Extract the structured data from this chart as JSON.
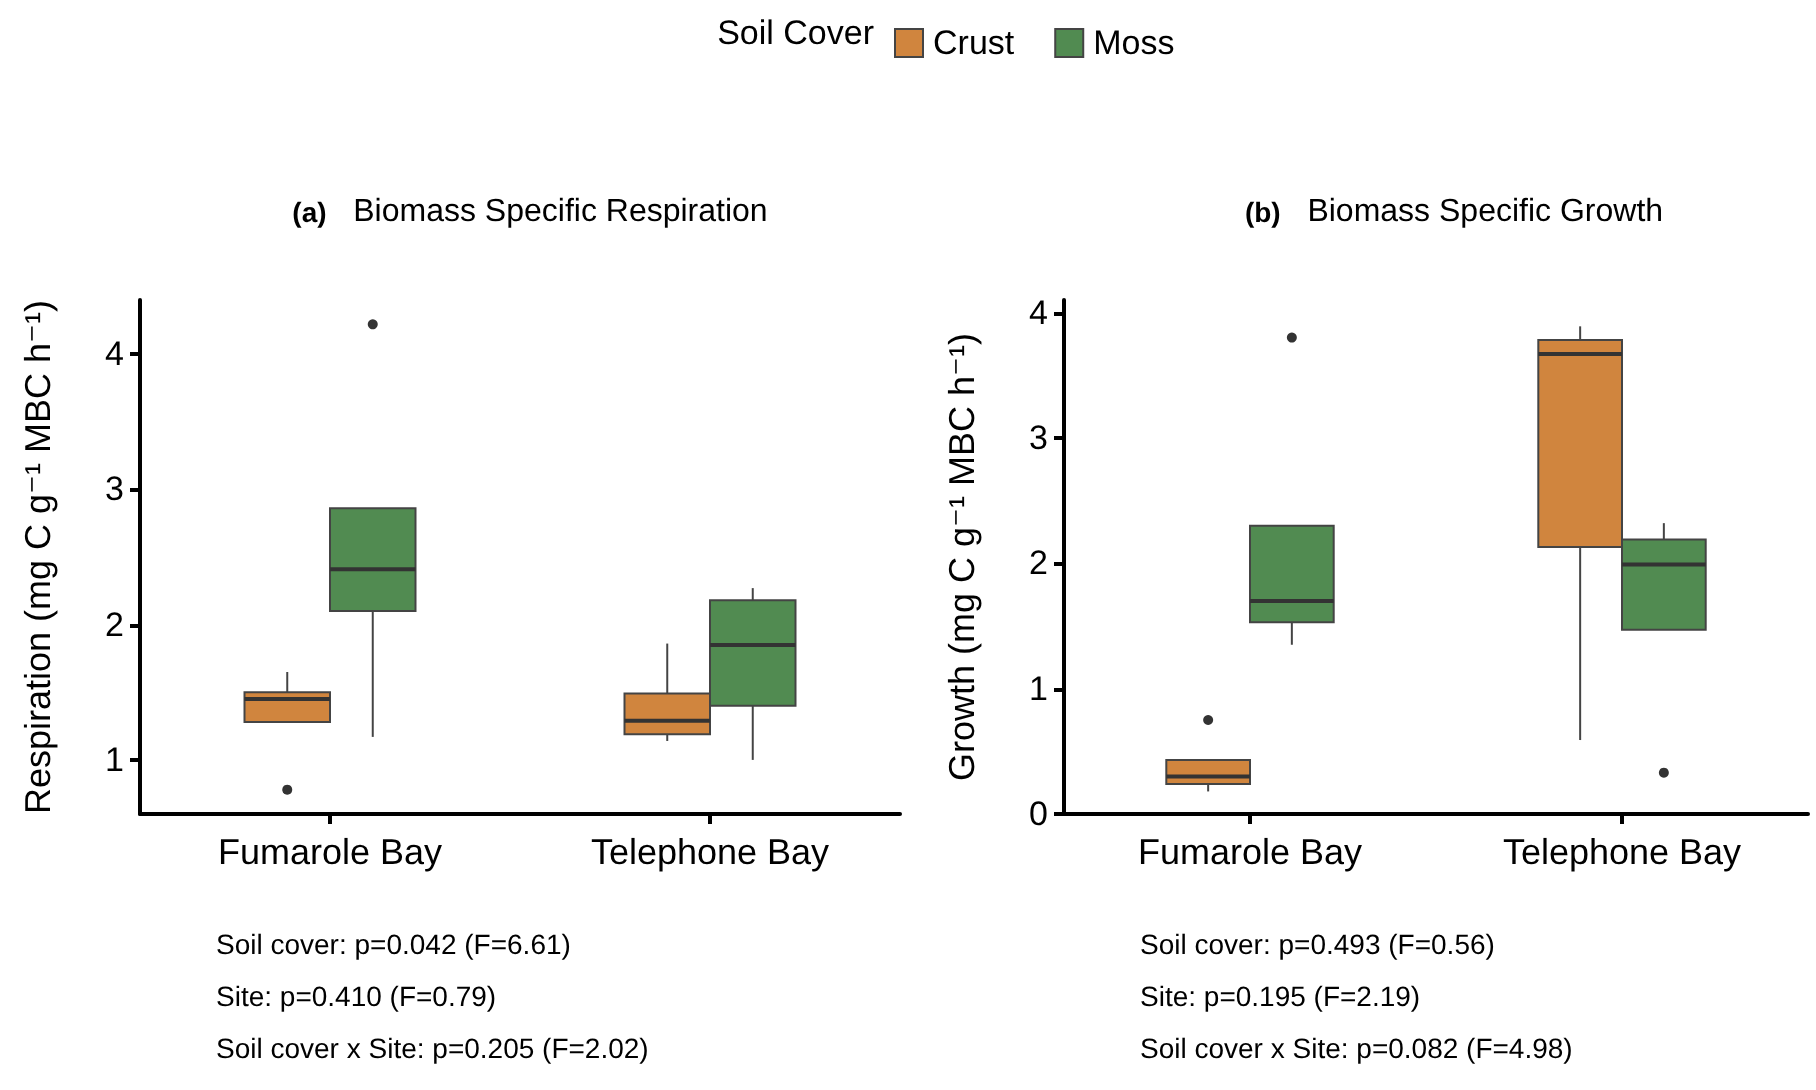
{
  "chart_data": [
    {
      "type": "box",
      "title": "(a) Biomass Specific Respiration",
      "ylabel": "Respiration (mg C g⁻¹ MBC h⁻¹)",
      "legend_title": "Soil Cover",
      "legend": "top",
      "grid": false,
      "categories": [
        "Fumarole Bay",
        "Telephone Bay"
      ],
      "ylim": [
        0.6,
        4.4
      ],
      "yticks": [
        1,
        2,
        3,
        4
      ],
      "series": [
        {
          "name": "Crust",
          "color": "#d0853e",
          "boxes": [
            {
              "low": 1.28,
              "q1": 1.28,
              "median": 1.45,
              "q3": 1.5,
              "high": 1.65,
              "outliers": [
                0.78
              ]
            },
            {
              "low": 1.14,
              "q1": 1.19,
              "median": 1.29,
              "q3": 1.49,
              "high": 1.86
            }
          ]
        },
        {
          "name": "Moss",
          "color": "#518b51",
          "boxes": [
            {
              "low": 1.17,
              "q1": 2.1,
              "median": 2.41,
              "q3": 2.86,
              "high": 2.86,
              "outliers": [
                4.22
              ]
            },
            {
              "low": 1.0,
              "q1": 1.4,
              "median": 1.85,
              "q3": 2.18,
              "high": 2.27
            }
          ]
        }
      ],
      "annotations": [
        "Soil cover: p=0.042 (F=6.61)",
        "Site: p=0.410 (F=0.79)",
        "Soil cover x Site: p=0.205 (F=2.02)"
      ]
    },
    {
      "type": "box",
      "title": "(b) Biomass Specific Growth",
      "ylabel": "Growth (mg C g⁻¹ MBC h⁻¹)",
      "grid": false,
      "categories": [
        "Fumarole Bay",
        "Telephone Bay"
      ],
      "ylim": [
        0,
        4.1
      ],
      "yticks": [
        0,
        1,
        2,
        3,
        4
      ],
      "series": [
        {
          "color": "#d0853e",
          "boxes": [
            {
              "low": 0.18,
              "q1": 0.24,
              "median": 0.3,
              "q3": 0.43,
              "high": 0.43,
              "outliers": [
                0.75
              ]
            },
            {
              "low": 0.59,
              "q1": 2.13,
              "median": 3.67,
              "q3": 3.78,
              "high": 3.89
            }
          ]
        },
        {
          "color": "#518b51",
          "boxes": [
            {
              "low": 1.35,
              "q1": 1.53,
              "median": 1.7,
              "q3": 2.3,
              "high": 2.3,
              "outliers": [
                3.8
              ]
            },
            {
              "low": 1.47,
              "q1": 1.47,
              "median": 1.99,
              "q3": 2.19,
              "high": 2.32,
              "outliers": [
                0.33
              ]
            }
          ]
        }
      ],
      "annotations": [
        "Soil cover: p=0.493 (F=0.56)",
        "Site: p=0.195 (F=2.19)",
        "Soil cover x Site: p=0.082 (F=4.98)"
      ]
    }
  ]
}
